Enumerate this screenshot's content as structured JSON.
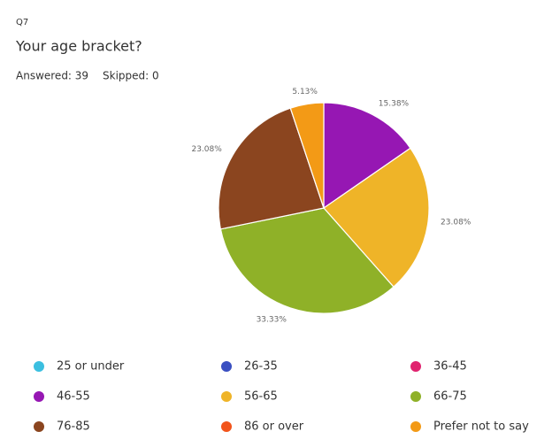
{
  "chart_data": {
    "type": "pie",
    "question_number": "Q7",
    "title": "Your age bracket?",
    "answered": "Answered: 39",
    "skipped": "Skipped: 0",
    "categories": [
      "25 or under",
      "26-35",
      "36-45",
      "46-55",
      "56-65",
      "66-75",
      "76-85",
      "86 or over",
      "Prefer not to say"
    ],
    "values": [
      0,
      0,
      0,
      15.38,
      23.08,
      33.33,
      23.08,
      0,
      5.13
    ],
    "value_labels": [
      null,
      null,
      null,
      "15.38%",
      "23.08%",
      "33.33%",
      "23.08%",
      null,
      "5.13%"
    ],
    "colors": [
      "#3bbfe0",
      "#3a4fc1",
      "#e0236f",
      "#9617b3",
      "#efb428",
      "#8fb128",
      "#8b451f",
      "#f2541b",
      "#f39a16"
    ]
  }
}
